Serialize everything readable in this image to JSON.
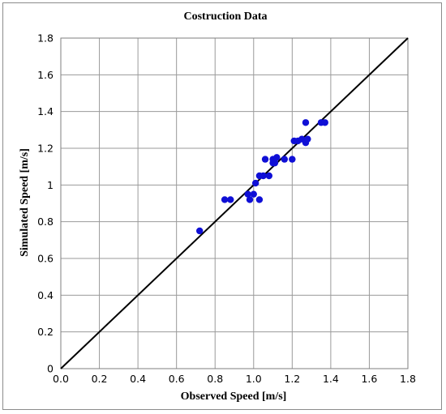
{
  "chart_data": {
    "type": "scatter",
    "title": "Costruction Data",
    "xlabel": "Observed Speed [m/s]",
    "ylabel": "Simulated Speed [m/s]",
    "xlim": [
      0,
      1.8
    ],
    "ylim": [
      0,
      1.8
    ],
    "x_ticks": [
      "0.0",
      "0.2",
      "0.4",
      "0.6",
      "0.8",
      "1.0",
      "1.2",
      "1.4",
      "1.6",
      "1.8"
    ],
    "y_ticks": [
      "0",
      "0.2",
      "0.4",
      "0.6",
      "0.8",
      "1",
      "1.2",
      "1.4",
      "1.6",
      "1.8"
    ],
    "grid": true,
    "legend": "none",
    "reference_line": {
      "from": [
        0,
        0
      ],
      "to": [
        1.8,
        1.8
      ],
      "color": "#000000"
    },
    "point_color": "#0f0fd6",
    "points": [
      {
        "x": 0.72,
        "y": 0.75
      },
      {
        "x": 0.85,
        "y": 0.92
      },
      {
        "x": 0.88,
        "y": 0.92
      },
      {
        "x": 0.97,
        "y": 0.95
      },
      {
        "x": 0.98,
        "y": 0.92
      },
      {
        "x": 1.0,
        "y": 0.95
      },
      {
        "x": 1.01,
        "y": 1.01
      },
      {
        "x": 1.03,
        "y": 0.92
      },
      {
        "x": 1.03,
        "y": 1.05
      },
      {
        "x": 1.05,
        "y": 1.05
      },
      {
        "x": 1.06,
        "y": 1.14
      },
      {
        "x": 1.08,
        "y": 1.05
      },
      {
        "x": 1.1,
        "y": 1.12
      },
      {
        "x": 1.1,
        "y": 1.14
      },
      {
        "x": 1.11,
        "y": 1.12
      },
      {
        "x": 1.12,
        "y": 1.15
      },
      {
        "x": 1.16,
        "y": 1.14
      },
      {
        "x": 1.2,
        "y": 1.14
      },
      {
        "x": 1.21,
        "y": 1.24
      },
      {
        "x": 1.23,
        "y": 1.24
      },
      {
        "x": 1.25,
        "y": 1.25
      },
      {
        "x": 1.27,
        "y": 1.23
      },
      {
        "x": 1.28,
        "y": 1.25
      },
      {
        "x": 1.27,
        "y": 1.34
      },
      {
        "x": 1.35,
        "y": 1.34
      },
      {
        "x": 1.37,
        "y": 1.34
      }
    ]
  }
}
